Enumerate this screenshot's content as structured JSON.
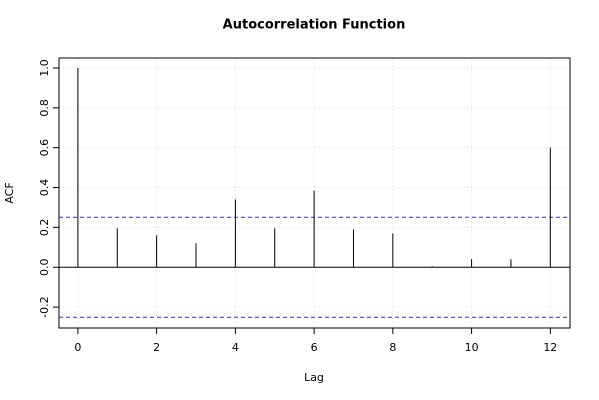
{
  "chart_data": {
    "type": "acf",
    "title": "Autocorrelation Function",
    "xlabel": "Lag",
    "ylabel": "ACF",
    "x": [
      0,
      1,
      2,
      3,
      4,
      5,
      6,
      7,
      8,
      9,
      10,
      11,
      12
    ],
    "values": [
      1.0,
      0.196,
      0.16,
      0.12,
      0.34,
      0.195,
      0.385,
      0.19,
      0.17,
      0.005,
      0.04,
      0.04,
      0.6
    ],
    "color": "#000000",
    "conf_limits": [
      0.251,
      -0.251
    ],
    "conf_color": "#3333aa",
    "xlim": [
      -0.48,
      12.5
    ],
    "xticks": [
      0,
      2,
      4,
      6,
      8,
      10,
      12
    ],
    "ylim": [
      -0.305,
      1.05
    ],
    "yticks": [
      -0.2,
      {
        "value": 0,
        "label": "0.0"
      },
      0.2,
      0.4,
      0.6,
      0.8,
      {
        "value": 1,
        "label": "1.0"
      }
    ],
    "grid": true
  }
}
